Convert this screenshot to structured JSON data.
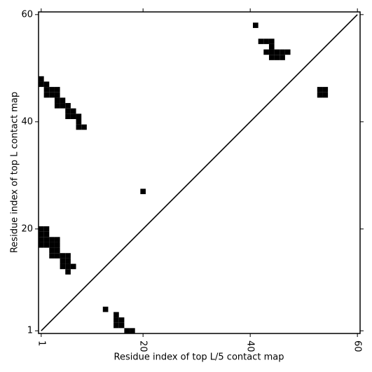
{
  "chart_data": {
    "type": "scatter",
    "marker": "square",
    "color": "#000000",
    "xlabel": "Residue index of top L/5 contact map",
    "ylabel": "Residue index of top L contact map",
    "xlim": [
      0.5,
      60.5
    ],
    "ylim": [
      0.5,
      60.5
    ],
    "xticks": [
      1,
      20,
      40,
      60
    ],
    "yticks": [
      1,
      20,
      40,
      60
    ],
    "diagonal": true,
    "x": [
      1,
      1,
      2,
      2,
      3,
      4,
      2,
      3,
      4,
      4,
      5,
      4,
      5,
      6,
      6,
      7,
      6,
      7,
      8,
      8,
      8,
      9,
      41,
      42,
      43,
      44,
      44,
      43,
      44,
      45,
      46,
      47,
      44,
      45,
      46,
      53,
      54,
      53,
      54,
      20,
      1,
      2,
      1,
      2,
      1,
      2,
      3,
      4,
      1,
      2,
      3,
      4,
      3,
      4,
      3,
      4,
      5,
      6,
      5,
      6,
      5,
      6,
      7,
      6,
      13,
      15,
      15,
      16,
      15,
      16,
      17,
      18
    ],
    "y": [
      48,
      47,
      47,
      46,
      46,
      46,
      45,
      45,
      45,
      44,
      44,
      43,
      43,
      43,
      42,
      42,
      41,
      41,
      41,
      40,
      39,
      39,
      58,
      55,
      55,
      55,
      54,
      53,
      53,
      53,
      53,
      53,
      52,
      52,
      52,
      46,
      46,
      45,
      45,
      27,
      20,
      20,
      19,
      19,
      18,
      18,
      18,
      18,
      17,
      17,
      17,
      17,
      16,
      16,
      15,
      15,
      15,
      15,
      14,
      14,
      13,
      13,
      13,
      12,
      5,
      4,
      3,
      3,
      2,
      2,
      1,
      1
    ]
  }
}
